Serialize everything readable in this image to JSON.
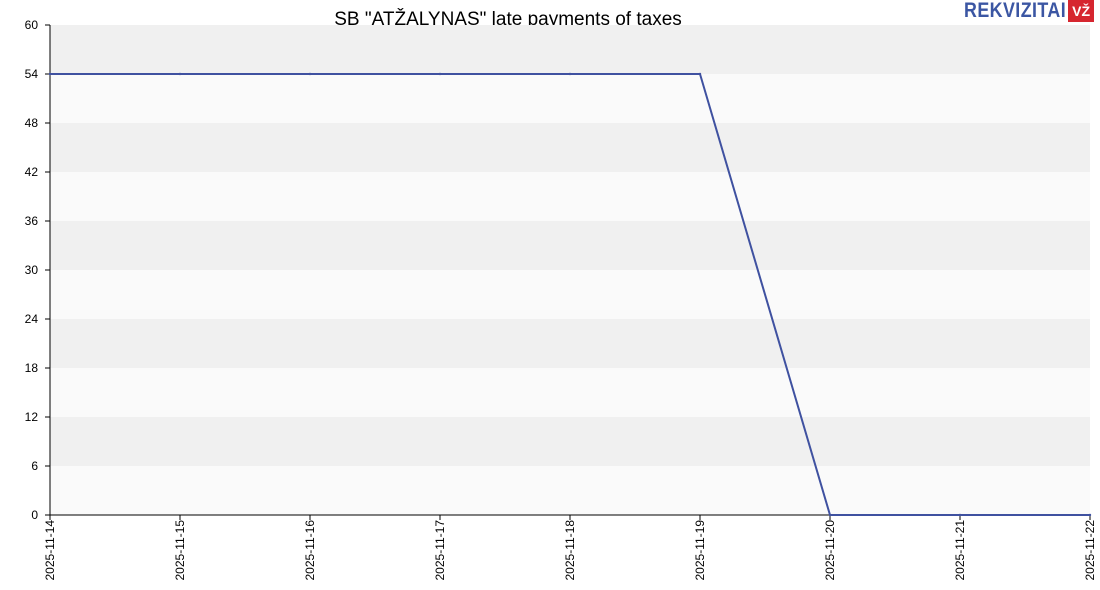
{
  "brand": {
    "logo_text": "REKVIZITAI",
    "logo_badge": "VŽ"
  },
  "chart_data": {
    "type": "line",
    "title": "SB \"ATŽALYNAS\" late payments of taxes",
    "xlabel": "",
    "ylabel": "",
    "x": [
      "2025-11-14",
      "2025-11-15",
      "2025-11-16",
      "2025-11-17",
      "2025-11-18",
      "2025-11-19",
      "2025-11-20",
      "2025-11-21",
      "2025-11-22"
    ],
    "series": [
      {
        "values": [
          54,
          54,
          54,
          54,
          54,
          54,
          0,
          0,
          0
        ],
        "color": "#3f51a0"
      }
    ],
    "ylim": [
      0,
      60
    ],
    "yticks": [
      0,
      6,
      12,
      18,
      24,
      30,
      36,
      42,
      48,
      54,
      60
    ],
    "grid": "alternating horizontal bands",
    "band_colors": [
      "#f0f0f0",
      "#fafafa"
    ]
  }
}
